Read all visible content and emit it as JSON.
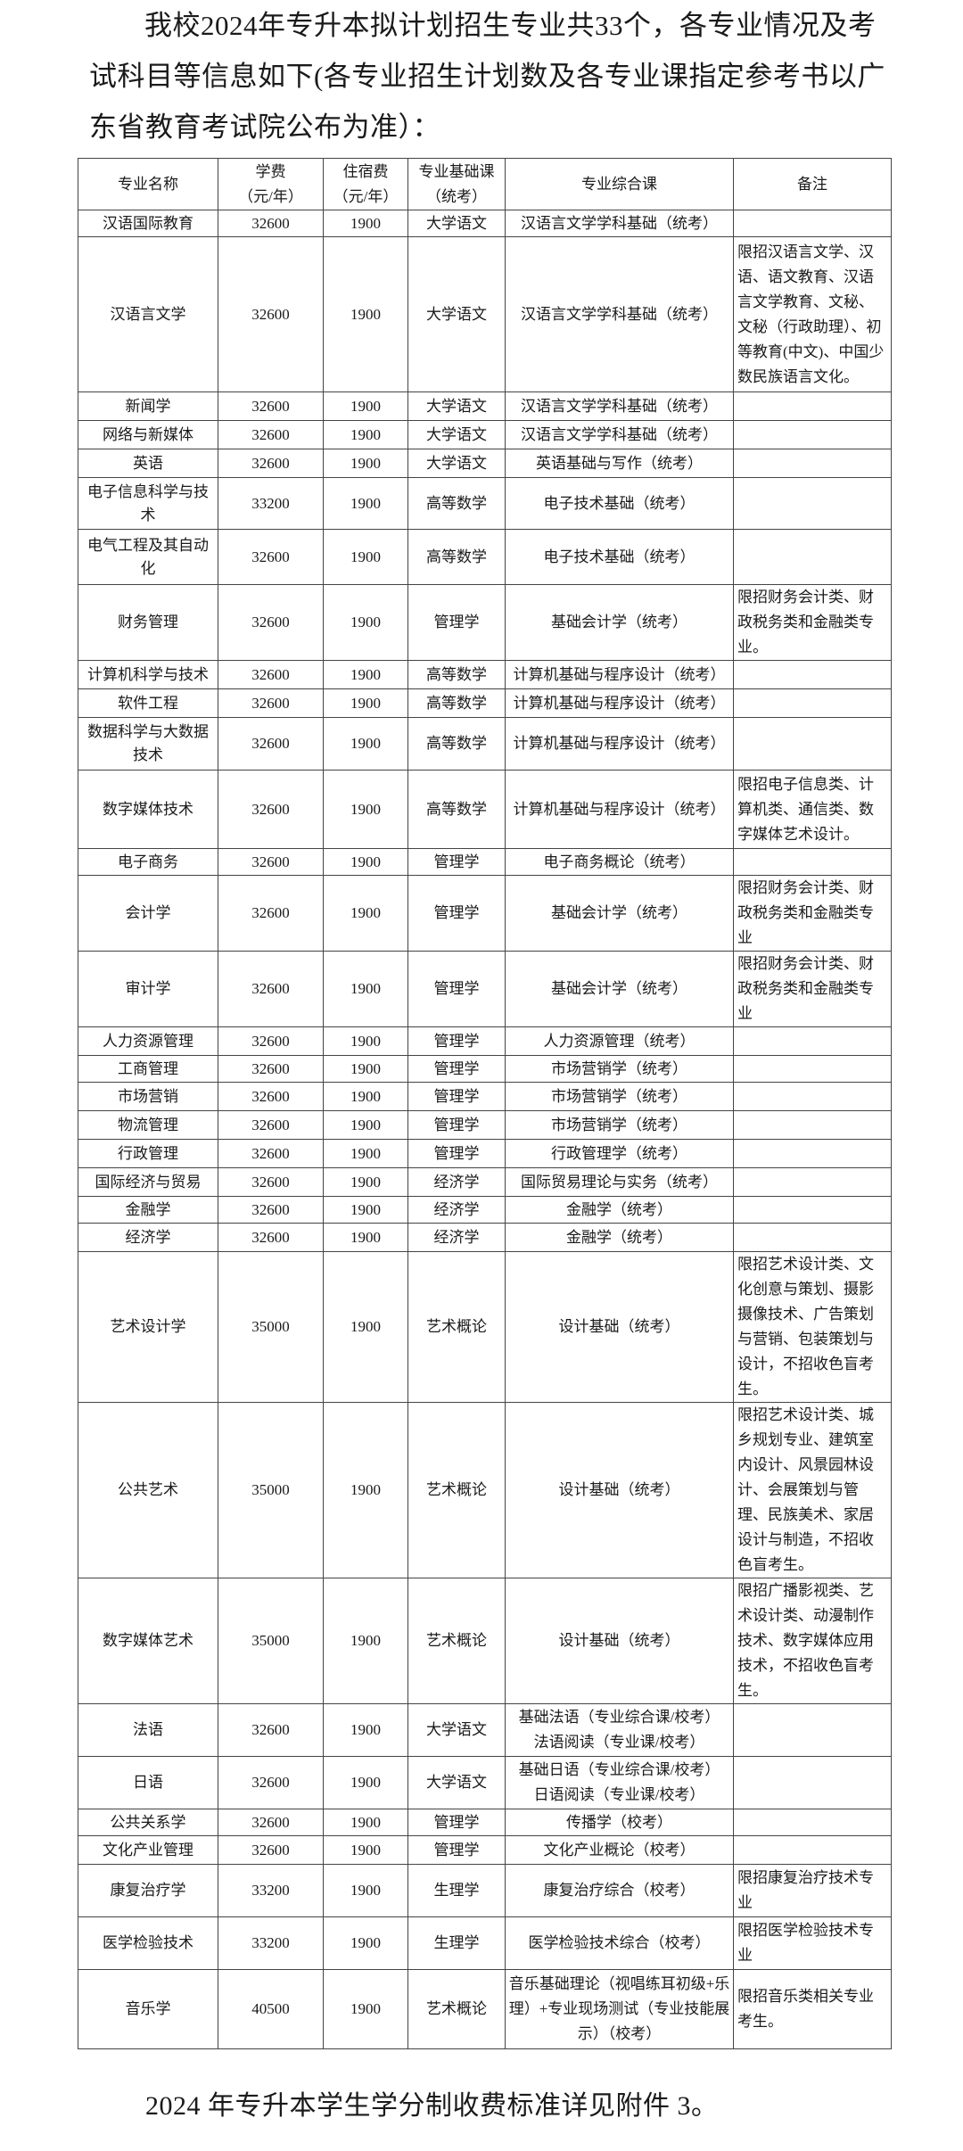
{
  "intro": "我校2024年专升本拟计划招生专业共33个，各专业情况及考试科目等信息如下(各专业招生计划数及各专业课指定参考书以广东省教育考试院公布为准）：",
  "table": {
    "headers": [
      "专业名称",
      "学费\n（元/年）",
      "住宿费\n（元/年）",
      "专业基础课\n（统考）",
      "专业综合课",
      "备注"
    ],
    "rows": [
      [
        "汉语国际教育",
        "32600",
        "1900",
        "大学语文",
        "汉语言文学学科基础（统考）",
        ""
      ],
      [
        "汉语言文学",
        "32600",
        "1900",
        "大学语文",
        "汉语言文学学科基础（统考）",
        "限招汉语言文学、汉语、语文教育、汉语言文学教育、文秘、文秘（行政助理）、初等教育(中文)、中国少数民族语言文化。"
      ],
      [
        "新闻学",
        "32600",
        "1900",
        "大学语文",
        "汉语言文学学科基础（统考）",
        ""
      ],
      [
        "网络与新媒体",
        "32600",
        "1900",
        "大学语文",
        "汉语言文学学科基础（统考）",
        ""
      ],
      [
        "英语",
        "32600",
        "1900",
        "大学语文",
        "英语基础与写作（统考）",
        ""
      ],
      [
        "电子信息科学与技术",
        "33200",
        "1900",
        "高等数学",
        "电子技术基础（统考）",
        ""
      ],
      [
        "电气工程及其自动化",
        "32600",
        "1900",
        "高等数学",
        "电子技术基础（统考）",
        ""
      ],
      [
        "财务管理",
        "32600",
        "1900",
        "管理学",
        "基础会计学（统考）",
        "限招财务会计类、财政税务类和金融类专业。"
      ],
      [
        "计算机科学与技术",
        "32600",
        "1900",
        "高等数学",
        "计算机基础与程序设计（统考）",
        ""
      ],
      [
        "软件工程",
        "32600",
        "1900",
        "高等数学",
        "计算机基础与程序设计（统考）",
        ""
      ],
      [
        "数据科学与大数据技术",
        "32600",
        "1900",
        "高等数学",
        "计算机基础与程序设计（统考）",
        ""
      ],
      [
        "数字媒体技术",
        "32600",
        "1900",
        "高等数学",
        "计算机基础与程序设计（统考）",
        "限招电子信息类、计算机类、通信类、数字媒体艺术设计。"
      ],
      [
        "电子商务",
        "32600",
        "1900",
        "管理学",
        "电子商务概论（统考）",
        ""
      ],
      [
        "会计学",
        "32600",
        "1900",
        "管理学",
        "基础会计学（统考）",
        "限招财务会计类、财政税务类和金融类专业"
      ],
      [
        "审计学",
        "32600",
        "1900",
        "管理学",
        "基础会计学（统考）",
        "限招财务会计类、财政税务类和金融类专业"
      ],
      [
        "人力资源管理",
        "32600",
        "1900",
        "管理学",
        "人力资源管理（统考）",
        ""
      ],
      [
        "工商管理",
        "32600",
        "1900",
        "管理学",
        "市场营销学（统考）",
        ""
      ],
      [
        "市场营销",
        "32600",
        "1900",
        "管理学",
        "市场营销学（统考）",
        ""
      ],
      [
        "物流管理",
        "32600",
        "1900",
        "管理学",
        "市场营销学（统考）",
        ""
      ],
      [
        "行政管理",
        "32600",
        "1900",
        "管理学",
        "行政管理学（统考）",
        ""
      ],
      [
        "国际经济与贸易",
        "32600",
        "1900",
        "经济学",
        "国际贸易理论与实务（统考）",
        ""
      ],
      [
        "金融学",
        "32600",
        "1900",
        "经济学",
        "金融学（统考）",
        ""
      ],
      [
        "经济学",
        "32600",
        "1900",
        "经济学",
        "金融学（统考）",
        ""
      ],
      [
        "艺术设计学",
        "35000",
        "1900",
        "艺术概论",
        "设计基础（统考）",
        "限招艺术设计类、文化创意与策划、摄影摄像技术、广告策划与营销、包装策划与设计，不招收色盲考生。"
      ],
      [
        "公共艺术",
        "35000",
        "1900",
        "艺术概论",
        "设计基础（统考）",
        "限招艺术设计类、城乡规划专业、建筑室内设计、风景园林设计、会展策划与管理、民族美术、家居设计与制造，不招收色盲考生。"
      ],
      [
        "数字媒体艺术",
        "35000",
        "1900",
        "艺术概论",
        "设计基础（统考）",
        "限招广播影视类、艺术设计类、动漫制作技术、数字媒体应用技术，不招收色盲考生。"
      ],
      [
        "法语",
        "32600",
        "1900",
        "大学语文",
        "基础法语（专业综合课/校考）\n法语阅读（专业课/校考）",
        ""
      ],
      [
        "日语",
        "32600",
        "1900",
        "大学语文",
        "基础日语（专业综合课/校考）\n日语阅读（专业课/校考）",
        ""
      ],
      [
        "公共关系学",
        "32600",
        "1900",
        "管理学",
        "传播学（校考）",
        ""
      ],
      [
        "文化产业管理",
        "32600",
        "1900",
        "管理学",
        "文化产业概论（校考）",
        ""
      ],
      [
        "康复治疗学",
        "33200",
        "1900",
        "生理学",
        "康复治疗综合（校考）",
        "限招康复治疗技术专业"
      ],
      [
        "医学检验技术",
        "33200",
        "1900",
        "生理学",
        "医学检验技术综合（校考）",
        "限招医学检验技术专业"
      ],
      [
        "音乐学",
        "40500",
        "1900",
        "艺术概论",
        "音乐基础理论（视唱练耳初级+乐理）+专业现场测试（专业技能展示）（校考）",
        "限招音乐类相关专业考生。"
      ]
    ]
  },
  "footer": "2024 年专升本学生学分制收费标准详见附件 3。"
}
